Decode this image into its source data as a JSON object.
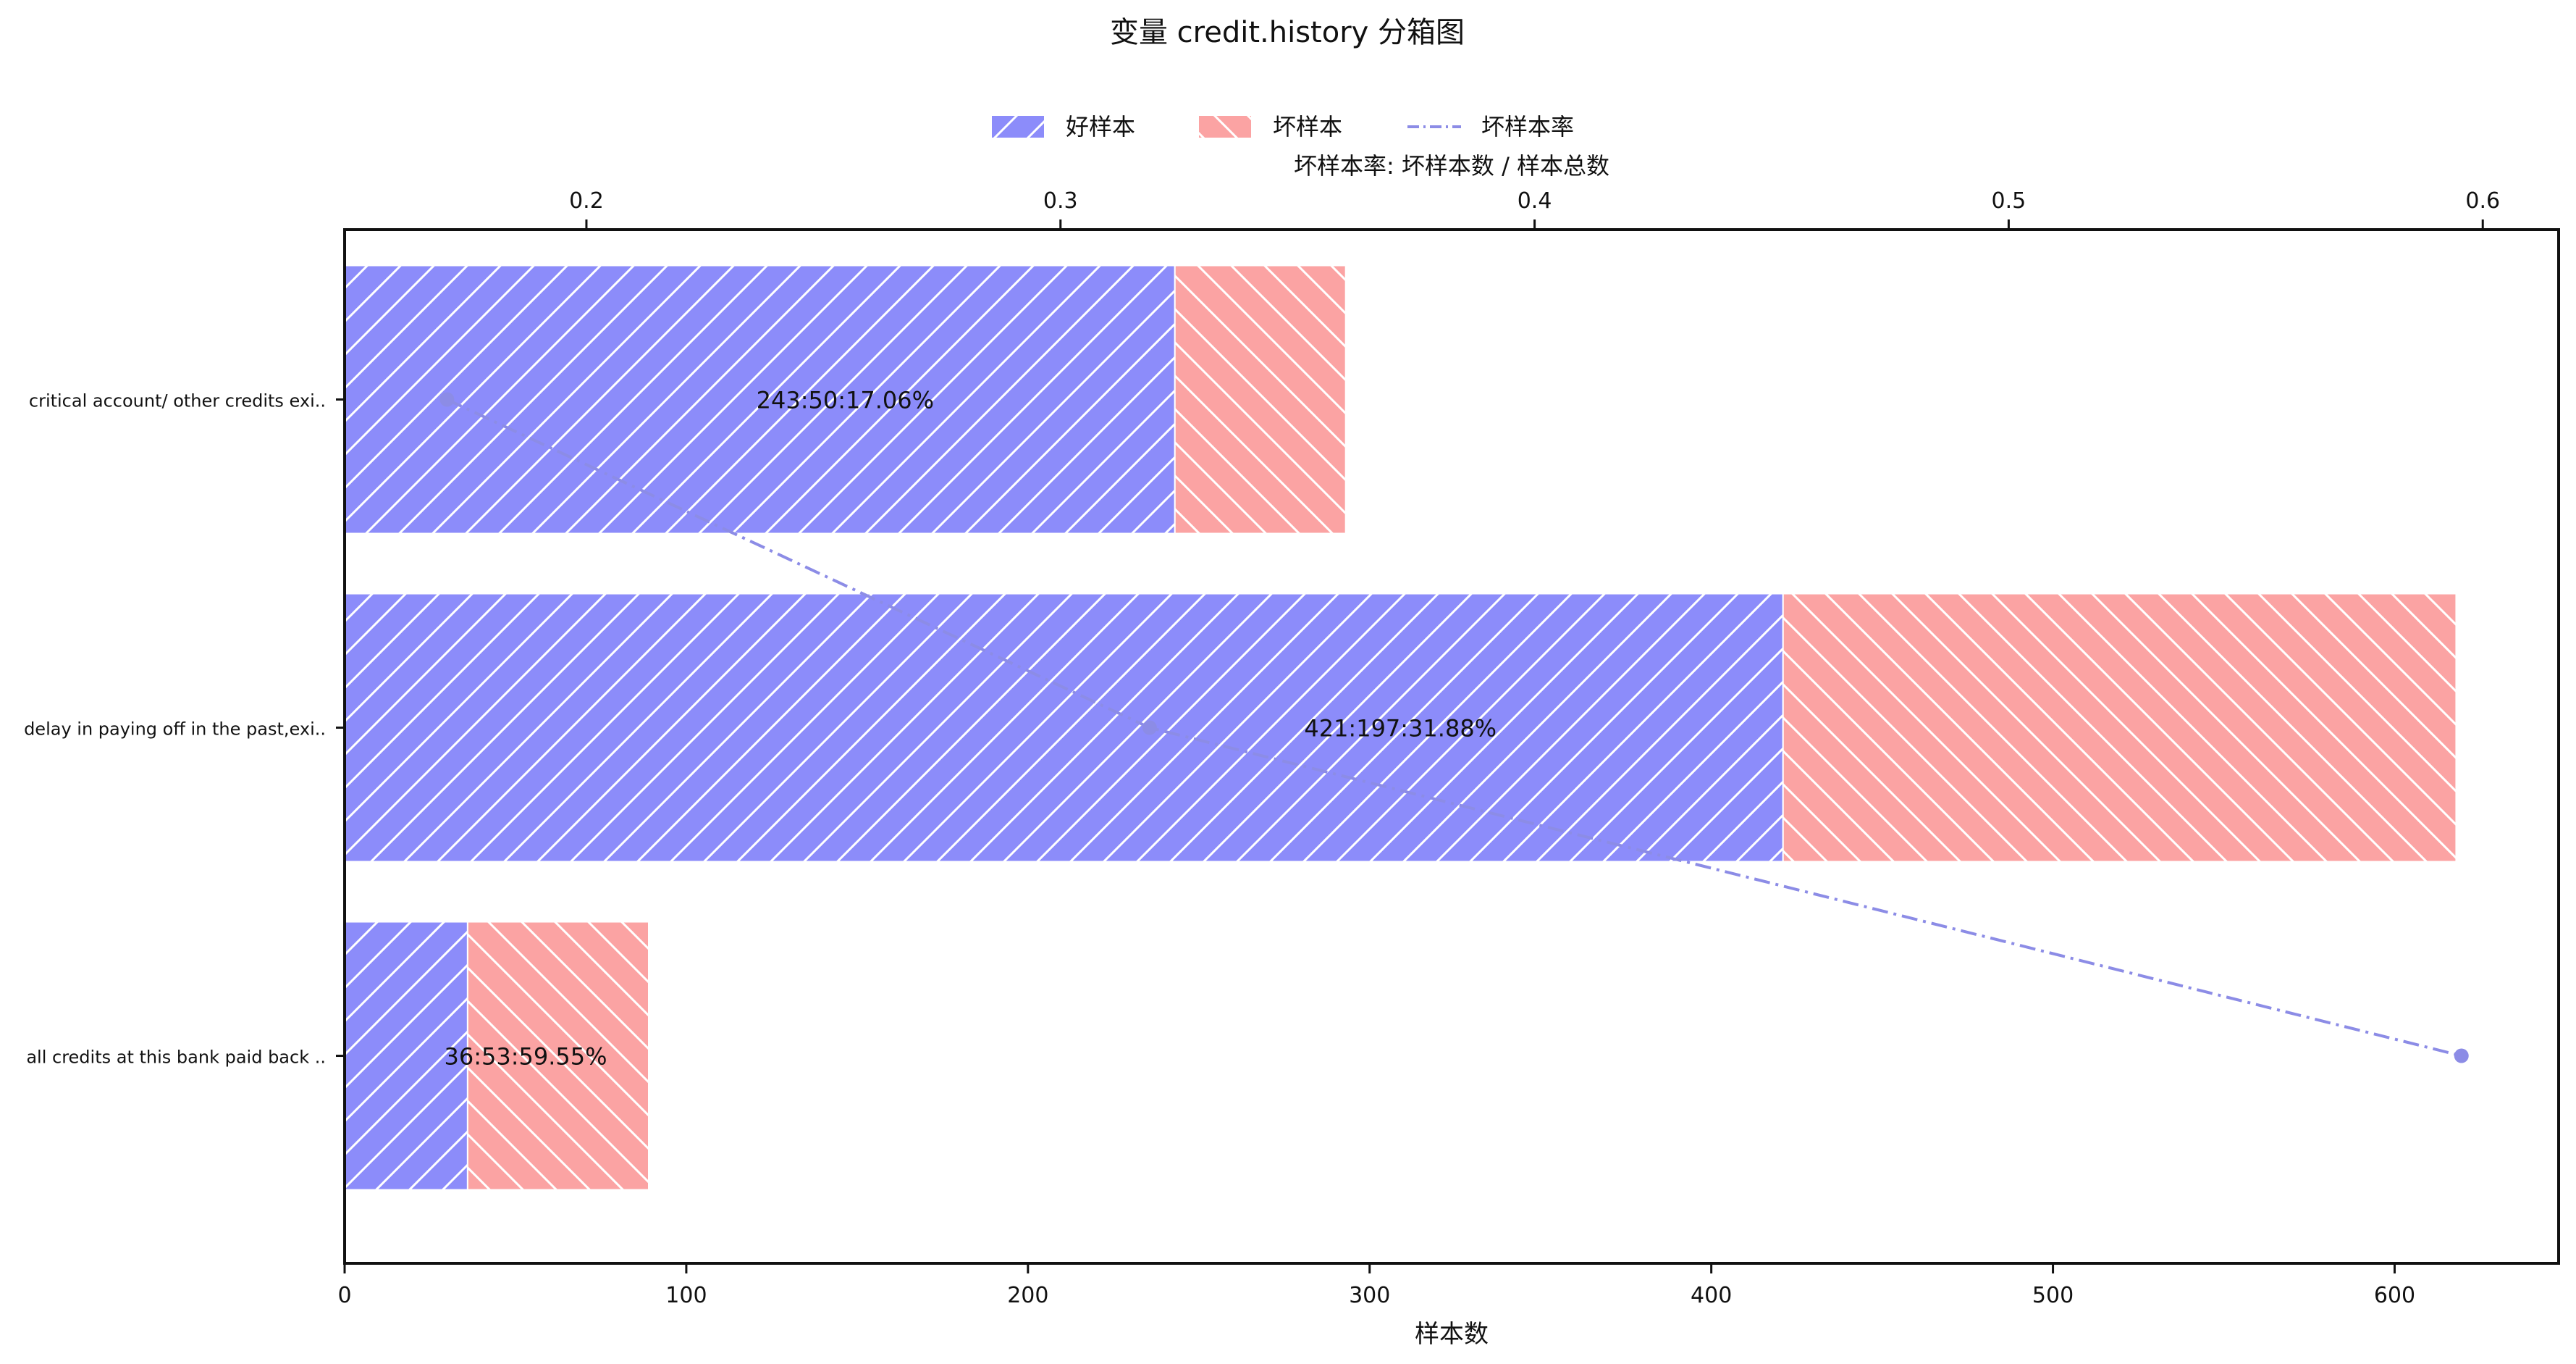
{
  "chart_data": {
    "type": "bar",
    "orientation": "horizontal",
    "stacked": true,
    "title": "变量 credit.history 分箱图",
    "xlabel": "样本数",
    "x2label": "坏样本率: 坏样本数 / 样本总数",
    "categories": [
      "critical account/ other credits exi..",
      "delay in paying off in the past,exi..",
      "all credits at this bank paid back .."
    ],
    "series": [
      {
        "name": "好样本",
        "values": [
          243,
          421,
          36
        ],
        "color": "#8c8cfa",
        "hatch": "/"
      },
      {
        "name": "坏样本",
        "values": [
          50,
          197,
          53
        ],
        "color": "#fba3a3",
        "hatch": "\\"
      }
    ],
    "rate_series": {
      "name": "坏样本率",
      "values": [
        0.1706,
        0.3188,
        0.5955
      ],
      "color": "#8c8ce6",
      "line_style": "dash-dot"
    },
    "bar_labels": [
      "243:50:17.06%",
      "421:197:31.88%",
      "36:53:59.55%"
    ],
    "xlim": [
      0,
      648
    ],
    "x_ticks": [
      0,
      100,
      200,
      300,
      400,
      500,
      600
    ],
    "x2lim": [
      0.149,
      0.616
    ],
    "x2_ticks": [
      0.2,
      0.3,
      0.4,
      0.5,
      0.6
    ],
    "legend": {
      "position": "top-center"
    },
    "grid": false
  }
}
